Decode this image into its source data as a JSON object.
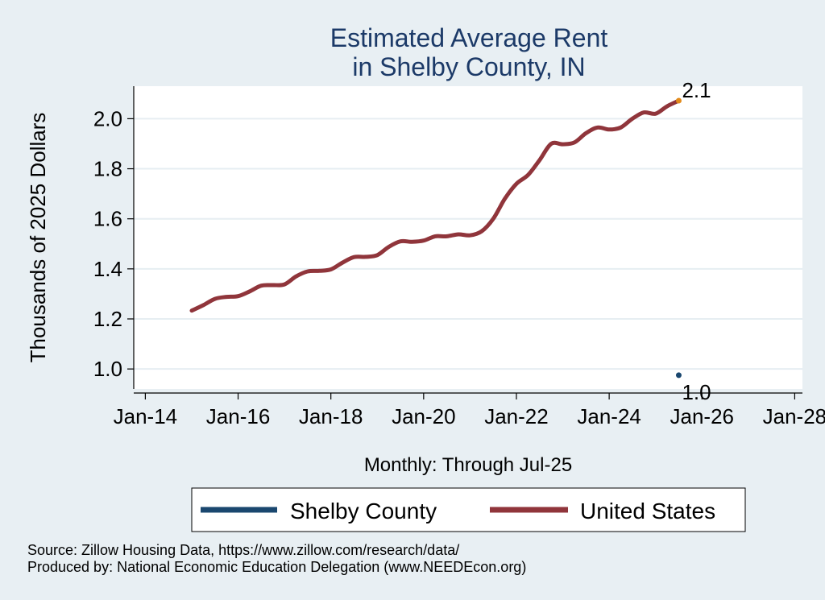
{
  "chart_data": {
    "type": "line",
    "title": "Estimated Average Rent",
    "subtitle": "in Shelby County, IN",
    "xlabel": "Monthly: Through Jul-25",
    "ylabel": "Thousands of 2025 Dollars",
    "x_ticks": [
      "Jan-14",
      "Jan-16",
      "Jan-18",
      "Jan-20",
      "Jan-22",
      "Jan-24",
      "Jan-26",
      "Jan-28"
    ],
    "y_ticks": [
      "1.0",
      "1.2",
      "1.4",
      "1.6",
      "1.8",
      "2.0"
    ],
    "xlim": [
      "2013-10",
      "2028-03"
    ],
    "ylim": [
      0.92,
      2.13
    ],
    "grid": true,
    "legend_position": "bottom",
    "series": [
      {
        "name": "Shelby County",
        "color": "#1a476f",
        "points": [
          [
            "2025-07",
            0.975
          ]
        ],
        "end_label": "1.0"
      },
      {
        "name": "United States",
        "color": "#90353b",
        "points": [
          [
            "2015-01",
            1.233
          ],
          [
            "2015-04",
            1.255
          ],
          [
            "2015-07",
            1.28
          ],
          [
            "2015-10",
            1.288
          ],
          [
            "2016-01",
            1.291
          ],
          [
            "2016-04",
            1.31
          ],
          [
            "2016-07",
            1.333
          ],
          [
            "2016-10",
            1.335
          ],
          [
            "2017-01",
            1.338
          ],
          [
            "2017-04",
            1.37
          ],
          [
            "2017-07",
            1.39
          ],
          [
            "2017-10",
            1.392
          ],
          [
            "2018-01",
            1.398
          ],
          [
            "2018-04",
            1.425
          ],
          [
            "2018-07",
            1.447
          ],
          [
            "2018-10",
            1.448
          ],
          [
            "2019-01",
            1.455
          ],
          [
            "2019-04",
            1.488
          ],
          [
            "2019-07",
            1.51
          ],
          [
            "2019-10",
            1.508
          ],
          [
            "2020-01",
            1.513
          ],
          [
            "2020-04",
            1.53
          ],
          [
            "2020-07",
            1.53
          ],
          [
            "2020-10",
            1.538
          ],
          [
            "2021-01",
            1.534
          ],
          [
            "2021-04",
            1.55
          ],
          [
            "2021-07",
            1.6
          ],
          [
            "2021-10",
            1.68
          ],
          [
            "2022-01",
            1.74
          ],
          [
            "2022-04",
            1.775
          ],
          [
            "2022-07",
            1.835
          ],
          [
            "2022-10",
            1.9
          ],
          [
            "2023-01",
            1.898
          ],
          [
            "2023-04",
            1.905
          ],
          [
            "2023-07",
            1.942
          ],
          [
            "2023-10",
            1.965
          ],
          [
            "2024-01",
            1.957
          ],
          [
            "2024-04",
            1.965
          ],
          [
            "2024-07",
            2.0
          ],
          [
            "2024-10",
            2.025
          ],
          [
            "2025-01",
            2.02
          ],
          [
            "2025-04",
            2.05
          ],
          [
            "2025-07",
            2.072
          ]
        ],
        "end_label": "2.1"
      }
    ],
    "end_marker_color": "#e28a1a",
    "notes": [
      "Source: Zillow Housing Data, https://www.zillow.com/research/data/",
      "Produced by: National Economic Education Delegation (www.NEEDEcon.org)"
    ]
  }
}
